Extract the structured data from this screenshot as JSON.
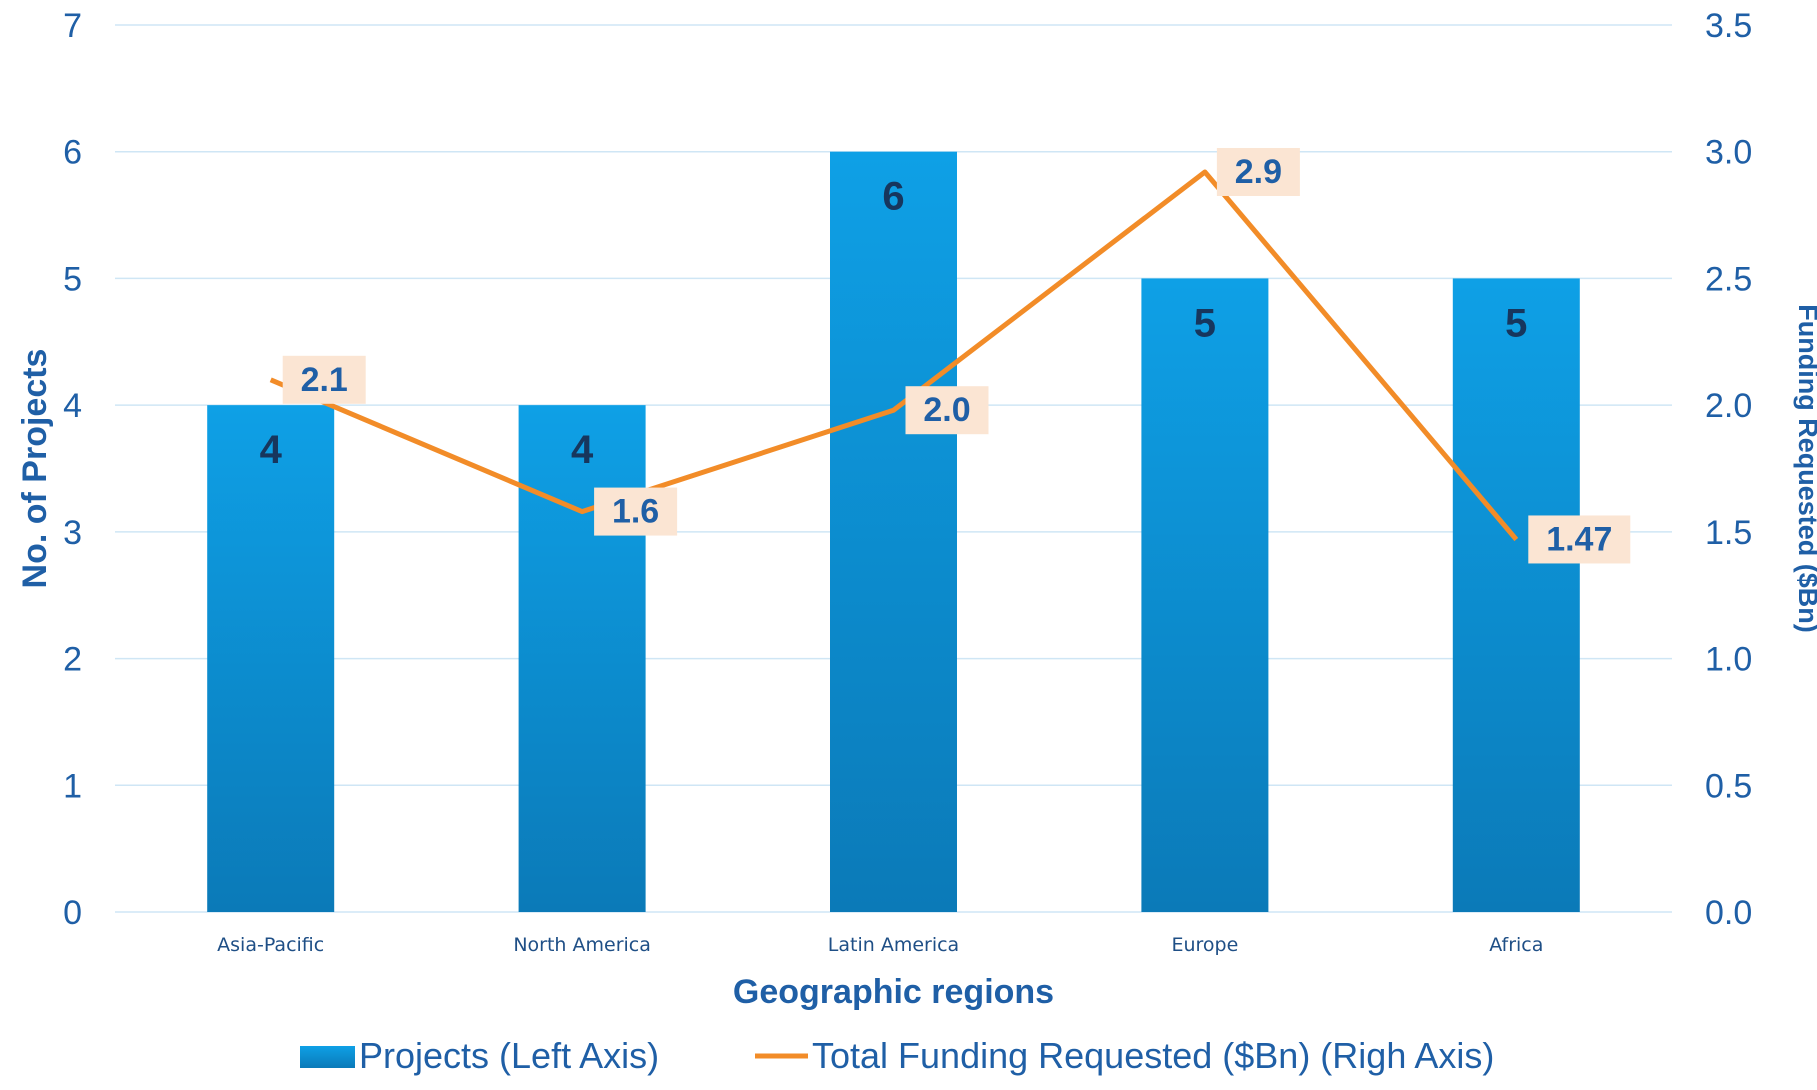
{
  "chart_data": {
    "type": "bar",
    "categories": [
      "Asia-Pacific",
      "North America",
      "Latin America",
      "Europe",
      "Africa"
    ],
    "series": [
      {
        "name": "Projects (Left Axis)",
        "type": "bar",
        "axis": "left",
        "values": [
          4,
          4,
          6,
          5,
          5
        ],
        "labels": [
          "4",
          "4",
          "6",
          "5",
          "5"
        ],
        "color": "#0ea0e6"
      },
      {
        "name": "Total Funding Requested ($Bn) (Righ Axis)",
        "type": "line",
        "axis": "right",
        "values": [
          2.1,
          1.58,
          1.98,
          2.92,
          1.47
        ],
        "labels": [
          "2.1",
          "1.6",
          "2.0",
          "2.9",
          "1.47"
        ],
        "color": "#f28c28"
      }
    ],
    "xlabel": "Geographic regions",
    "ylabel": "No. of Projects",
    "y2label": "Funding Requested ($Bn)",
    "ylim": [
      0,
      7
    ],
    "y2lim": [
      0,
      3.5
    ],
    "yticks": [
      "0",
      "1",
      "2",
      "3",
      "4",
      "5",
      "6",
      "7"
    ],
    "y2ticks": [
      "0.0",
      "0.5",
      "1.0",
      "1.5",
      "2.0",
      "2.5",
      "3.0",
      "3.5"
    ],
    "grid": true,
    "legend_position": "bottom",
    "colors": {
      "bar_top": "#0ea0e6",
      "bar_bottom": "#0b7ab8",
      "line": "#f28c28",
      "label_box": "#fbe5d3",
      "grid": "#cfe6f5",
      "text": "#1f5fa6"
    }
  }
}
